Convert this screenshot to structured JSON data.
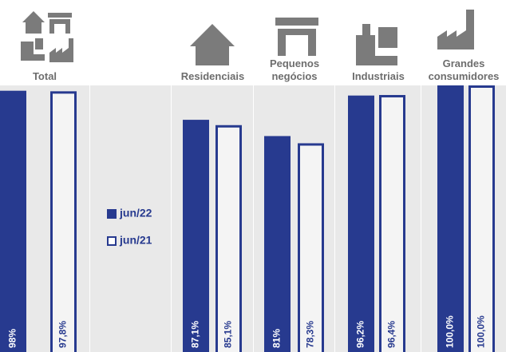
{
  "chart_data": {
    "type": "bar",
    "categories": [
      "Total",
      "Residenciais",
      "Pequenos negócios",
      "Industriais",
      "Grandes consumidores"
    ],
    "series": [
      {
        "name": "jun/22",
        "color": "#273a8f",
        "outline": false,
        "values": [
          98,
          87.1,
          81,
          96.2,
          100
        ],
        "value_labels": [
          "98%",
          "87,1%",
          "81%",
          "96,2%",
          "100,0%"
        ]
      },
      {
        "name": "jun/21",
        "color": "#273a8f",
        "outline": true,
        "values": [
          97.8,
          85.1,
          78.3,
          96.4,
          100
        ],
        "value_labels": [
          "97,8%",
          "85,1%",
          "78,3%",
          "96,4%",
          "100,0%"
        ]
      }
    ],
    "ylim": [
      0,
      100
    ]
  }
}
